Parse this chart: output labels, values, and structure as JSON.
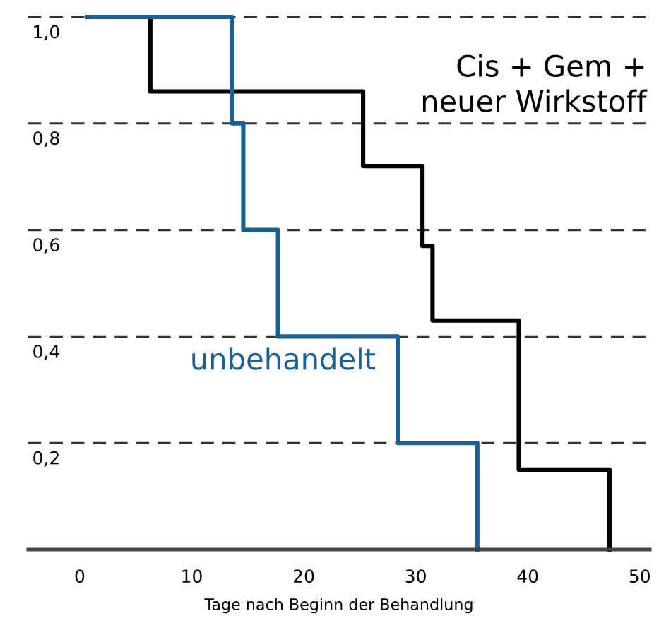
{
  "chart_data": {
    "type": "step",
    "xlabel": "Tage nach Beginn der Behandlung",
    "series": [
      {
        "name": "Cis + Gem +\nneuer Wirkstoff",
        "color": "#000000",
        "x": [
          0.7,
          6.3,
          25.3,
          30.6,
          31.5,
          39.2,
          47.3
        ],
        "values": [
          1.0,
          0.86,
          0.72,
          0.57,
          0.43,
          0.15,
          0
        ]
      },
      {
        "name": "unbehandelt",
        "color": "#1a6098",
        "x": [
          0.7,
          13.6,
          14.6,
          17.7,
          28.4,
          35.5
        ],
        "values": [
          1.0,
          0.8,
          0.6,
          0.4,
          0.2,
          0
        ]
      }
    ],
    "xlim": [
      -4.6,
      50.9
    ],
    "ylim": [
      0,
      1.0
    ],
    "xticks": [
      0,
      10,
      20,
      30,
      40,
      50
    ],
    "yticks": [
      {
        "value": 0.2,
        "label": "0,2"
      },
      {
        "value": 0.4,
        "label": "0,4"
      },
      {
        "value": 0.6,
        "label": "0,6"
      },
      {
        "value": 0.8,
        "label": "0,8"
      },
      {
        "value": 1.0,
        "label": "1,0"
      }
    ],
    "grid": "y",
    "line_style": "solid"
  }
}
